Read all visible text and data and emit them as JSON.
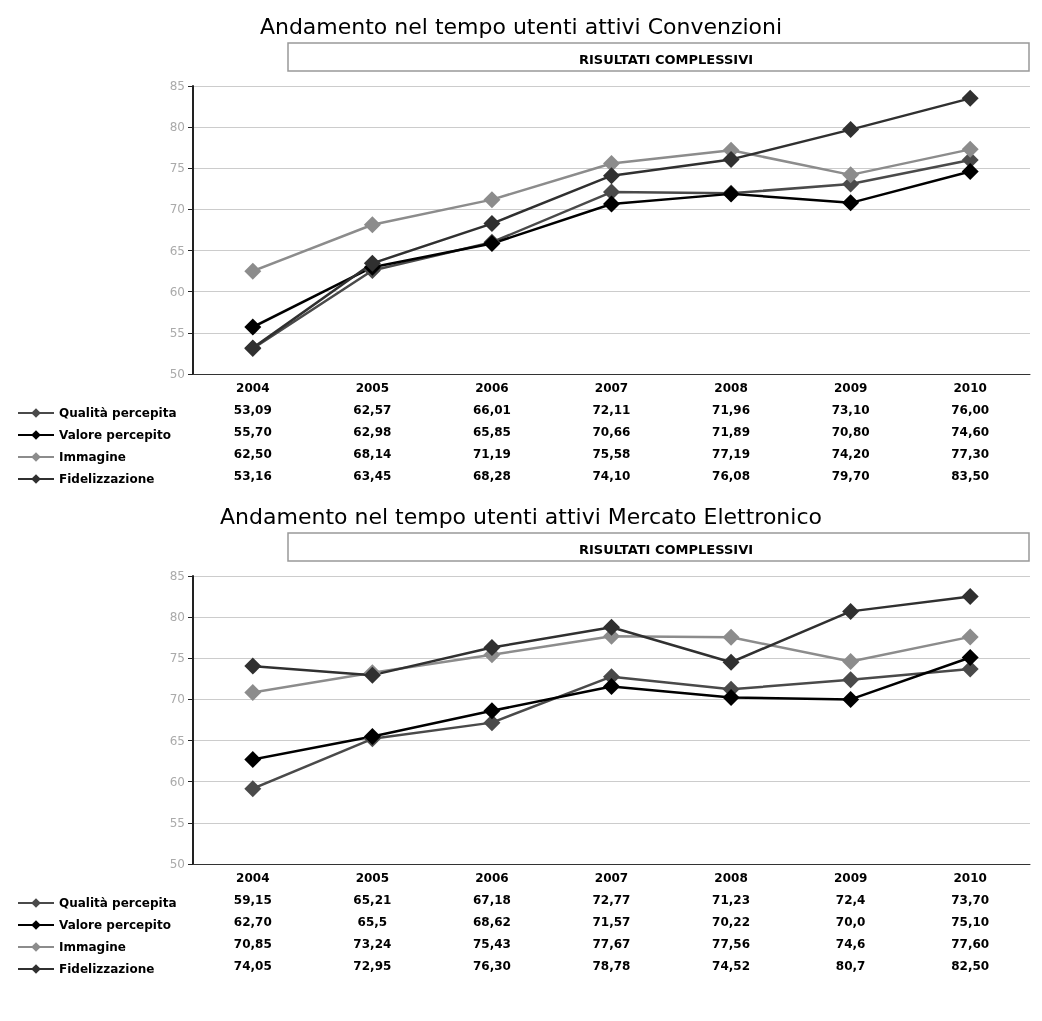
{
  "chart_data": [
    {
      "type": "line",
      "title": "Andamento nel tempo utenti attivi Convenzioni",
      "subtitle": "RISULTATI COMPLESSIVI",
      "categories": [
        "2004",
        "2005",
        "2006",
        "2007",
        "2008",
        "2009",
        "2010"
      ],
      "series": [
        {
          "name": "Qualità percepita",
          "color": "#4a4a4a",
          "values": [
            53.09,
            62.57,
            66.01,
            72.11,
            71.96,
            73.1,
            76.0
          ],
          "value_labels": [
            "53,09",
            "62,57",
            "66,01",
            "72,11",
            "71,96",
            "73,10",
            "76,00"
          ]
        },
        {
          "name": "Valore percepito",
          "color": "#000000",
          "values": [
            55.7,
            62.98,
            65.85,
            70.66,
            71.89,
            70.8,
            74.6
          ],
          "value_labels": [
            "55,70",
            "62,98",
            "65,85",
            "70,66",
            "71,89",
            "70,80",
            "74,60"
          ]
        },
        {
          "name": "Immagine",
          "color": "#8c8c8c",
          "values": [
            62.5,
            68.14,
            71.19,
            75.58,
            77.19,
            74.2,
            77.3
          ],
          "value_labels": [
            "62,50",
            "68,14",
            "71,19",
            "75,58",
            "77,19",
            "74,20",
            "77,30"
          ]
        },
        {
          "name": "Fidelizzazione",
          "color": "#303030",
          "values": [
            53.16,
            63.45,
            68.28,
            74.1,
            76.08,
            79.7,
            83.5
          ],
          "value_labels": [
            "53,16",
            "63,45",
            "68,28",
            "74,10",
            "76,08",
            "79,70",
            "83,50"
          ]
        }
      ],
      "ylim": [
        50,
        85
      ],
      "yticks": [
        50,
        55,
        60,
        65,
        70,
        75,
        80,
        85
      ],
      "grid": "y",
      "legend": "bottom left",
      "marker": "diamond",
      "line_style": "solid"
    },
    {
      "type": "line",
      "title": "Andamento nel tempo utenti attivi Mercato Elettronico",
      "subtitle": "RISULTATI COMPLESSIVI",
      "categories": [
        "2004",
        "2005",
        "2006",
        "2007",
        "2008",
        "2009",
        "2010"
      ],
      "series": [
        {
          "name": "Qualità percepita",
          "color": "#4a4a4a",
          "values": [
            59.15,
            65.21,
            67.18,
            72.77,
            71.23,
            72.4,
            73.7
          ],
          "value_labels": [
            "59,15",
            "65,21",
            "67,18",
            "72,77",
            "71,23",
            "72,4",
            "73,70"
          ]
        },
        {
          "name": "Valore percepito",
          "color": "#000000",
          "values": [
            62.7,
            65.5,
            68.62,
            71.57,
            70.22,
            70.0,
            75.1
          ],
          "value_labels": [
            "62,70",
            "65,5",
            "68,62",
            "71,57",
            "70,22",
            "70,0",
            "75,10"
          ]
        },
        {
          "name": "Immagine",
          "color": "#8c8c8c",
          "values": [
            70.85,
            73.24,
            75.43,
            77.67,
            77.56,
            74.6,
            77.6
          ],
          "value_labels": [
            "70,85",
            "73,24",
            "75,43",
            "77,67",
            "77,56",
            "74,6",
            "77,60"
          ]
        },
        {
          "name": "Fidelizzazione",
          "color": "#303030",
          "values": [
            74.05,
            72.95,
            76.3,
            78.78,
            74.52,
            80.7,
            82.5
          ],
          "value_labels": [
            "74,05",
            "72,95",
            "76,30",
            "78,78",
            "74,52",
            "80,7",
            "82,50"
          ]
        }
      ],
      "ylim": [
        50,
        85
      ],
      "yticks": [
        50,
        55,
        60,
        65,
        70,
        75,
        80,
        85
      ],
      "grid": "y",
      "legend": "bottom left",
      "marker": "diamond",
      "line_style": "solid"
    }
  ]
}
